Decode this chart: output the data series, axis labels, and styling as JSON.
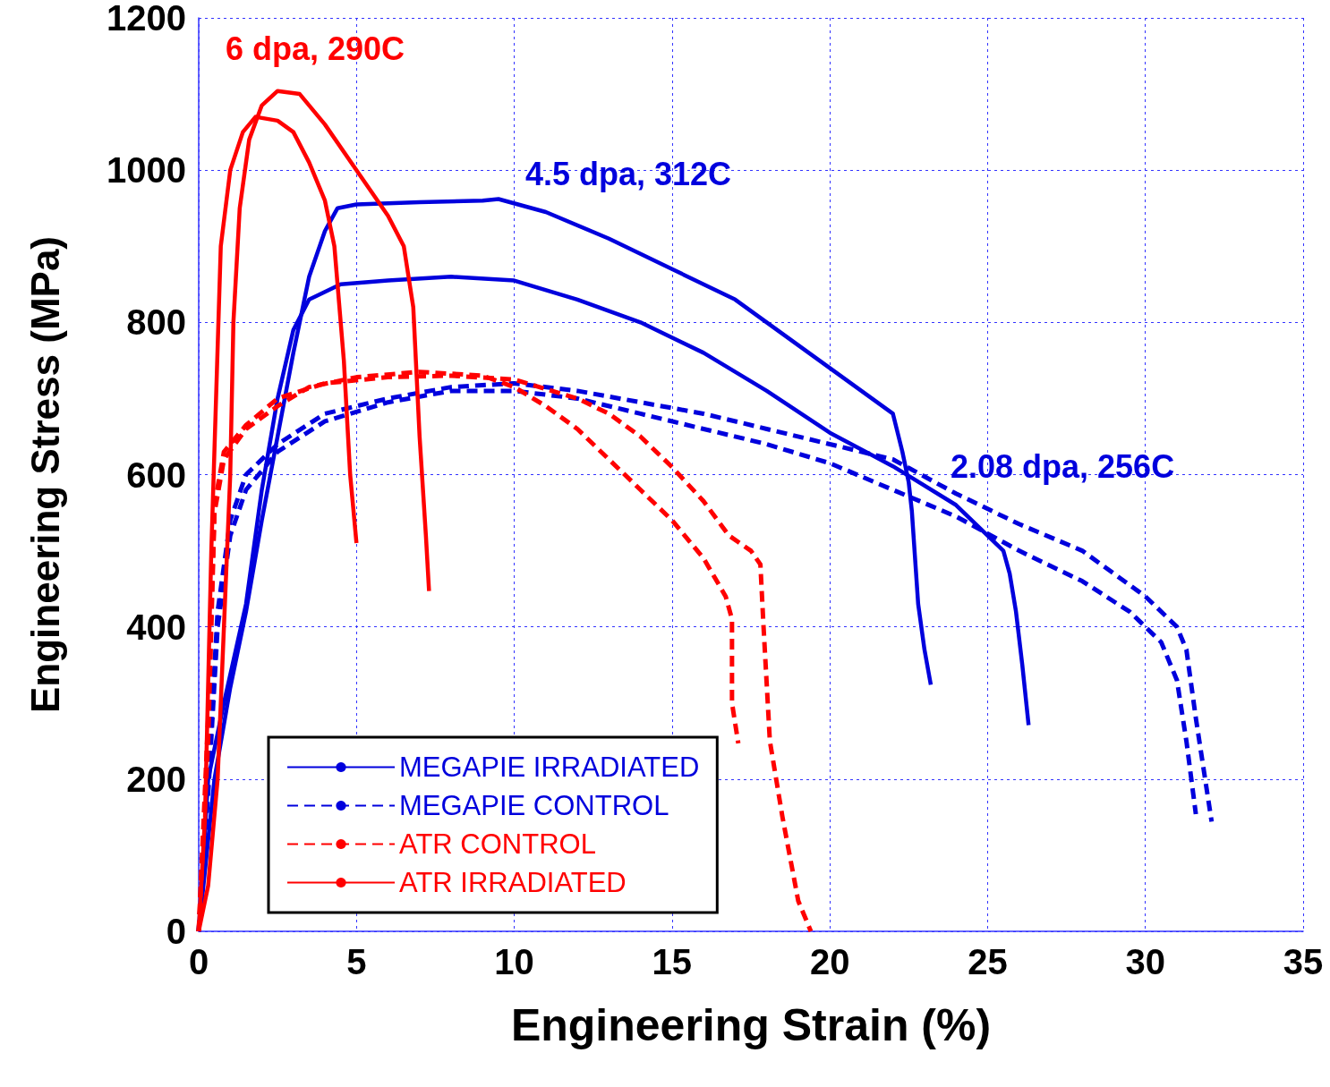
{
  "chart_data": {
    "type": "line",
    "xlabel": "Engineering Strain (%)",
    "ylabel": "Engineering Stress (MPa)",
    "xlim": [
      0,
      35
    ],
    "xticks": [
      0,
      5,
      10,
      15,
      20,
      25,
      30,
      35
    ],
    "ylim": [
      0,
      1200
    ],
    "yticks": [
      0,
      200,
      400,
      600,
      800,
      1000,
      1200
    ],
    "grid": true,
    "legend": "bottom left",
    "line_style": "solid",
    "annotations": [
      "6 dpa, 290C",
      "4.5 dpa, 312C",
      "2.08 dpa, 256C"
    ],
    "series": [
      {
        "name": "MEGAPIE IRRADIATED",
        "color": "#0000dd",
        "x": [
          0,
          0.5,
          1.0,
          1.5,
          2.0,
          2.5,
          3.0,
          3.5,
          4.0,
          4.4,
          5,
          7,
          9,
          9.5,
          11,
          13,
          15,
          17,
          19,
          21,
          22,
          22.3,
          22.5,
          22.6,
          22.8,
          23.0,
          23.2
        ],
        "values": [
          0,
          200,
          320,
          420,
          540,
          650,
          760,
          860,
          920,
          950,
          955,
          958,
          960,
          962,
          945,
          910,
          870,
          830,
          770,
          710,
          680,
          630,
          590,
          552,
          430,
          370,
          324
        ]
      },
      {
        "color": "#0000dd",
        "x": [
          0,
          0.3,
          0.8,
          1.5,
          2.0,
          2.5,
          3.0,
          3.5,
          4.5,
          6,
          8,
          10,
          12,
          14,
          16,
          18,
          20,
          22,
          24,
          25.5,
          25.7,
          25.9,
          26.1,
          26.3
        ],
        "values": [
          0,
          200,
          300,
          430,
          580,
          700,
          790,
          830,
          850,
          855,
          860,
          855,
          830,
          800,
          760,
          710,
          655,
          611,
          560,
          500,
          470,
          420,
          350,
          271
        ]
      },
      {
        "name": "MEGAPIE CONTROL",
        "color": "#0000dd",
        "line_style": "dashed",
        "x": [
          0,
          0.3,
          0.6,
          1.0,
          1.5,
          2.5,
          4,
          6,
          8,
          10,
          12,
          14,
          16,
          18,
          20,
          22,
          24,
          26,
          28,
          30,
          31.0,
          31.3,
          31.6,
          32.1
        ],
        "values": [
          0,
          200,
          420,
          540,
          600,
          640,
          680,
          700,
          715,
          720,
          710,
          695,
          680,
          660,
          640,
          620,
          575,
          535,
          500,
          440,
          400,
          370,
          280,
          144
        ]
      },
      {
        "color": "#0000dd",
        "line_style": "dashed",
        "x": [
          0,
          0.3,
          0.6,
          1.0,
          1.5,
          2.5,
          4,
          6,
          8,
          10,
          12,
          14,
          16,
          18,
          20,
          22,
          24,
          26,
          28,
          29.5,
          30.5,
          31.0,
          31.3,
          31.6
        ],
        "values": [
          0,
          180,
          400,
          520,
          580,
          630,
          670,
          695,
          710,
          710,
          700,
          680,
          660,
          640,
          615,
          580,
          545,
          500,
          460,
          420,
          380,
          330,
          250,
          154
        ]
      },
      {
        "name": "ATR CONTROL",
        "color": "#ff0000",
        "line_style": "dashed",
        "x": [
          0,
          0.3,
          0.5,
          0.8,
          1.5,
          2.5,
          3.5,
          5,
          7,
          9,
          10,
          11,
          12,
          13,
          14,
          15,
          16,
          16.7,
          16.9,
          16.9,
          17.1
        ],
        "values": [
          0,
          250,
          550,
          620,
          660,
          690,
          715,
          728,
          735,
          730,
          715,
          690,
          660,
          620,
          580,
          540,
          490,
          440,
          410,
          300,
          247
        ]
      },
      {
        "color": "#ff0000",
        "line_style": "dashed",
        "x": [
          0,
          0.3,
          0.5,
          0.8,
          1.5,
          2.5,
          4,
          6,
          8,
          10,
          12,
          13,
          14,
          15,
          16,
          16.8,
          17.5,
          17.8,
          17.9,
          18.1,
          18.5,
          19,
          19.4
        ],
        "values": [
          0,
          280,
          560,
          630,
          665,
          700,
          720,
          728,
          730,
          725,
          700,
          680,
          650,
          610,
          565,
          520,
          500,
          482,
          400,
          250,
          150,
          40,
          0
        ]
      },
      {
        "name": "ATR IRRADIATED",
        "color": "#ff0000",
        "x": [
          0,
          0.3,
          0.6,
          0.8,
          1.0,
          1.1,
          1.3,
          1.6,
          2.0,
          2.5,
          3.2,
          4.0,
          5.0,
          6.0,
          6.5,
          6.8,
          7.0,
          7.2,
          7.3
        ],
        "values": [
          0,
          60,
          200,
          400,
          600,
          800,
          950,
          1040,
          1085,
          1104,
          1100,
          1060,
          1000,
          940,
          900,
          820,
          650,
          520,
          447
        ]
      },
      {
        "color": "#ff0000",
        "x": [
          0,
          0.2,
          0.4,
          0.7,
          1.0,
          1.4,
          1.8,
          2.5,
          3.0,
          3.5,
          4.0,
          4.3,
          4.6,
          4.8,
          5.0
        ],
        "values": [
          0,
          150,
          500,
          900,
          1000,
          1050,
          1070,
          1065,
          1050,
          1010,
          960,
          900,
          750,
          600,
          510
        ]
      }
    ]
  }
}
